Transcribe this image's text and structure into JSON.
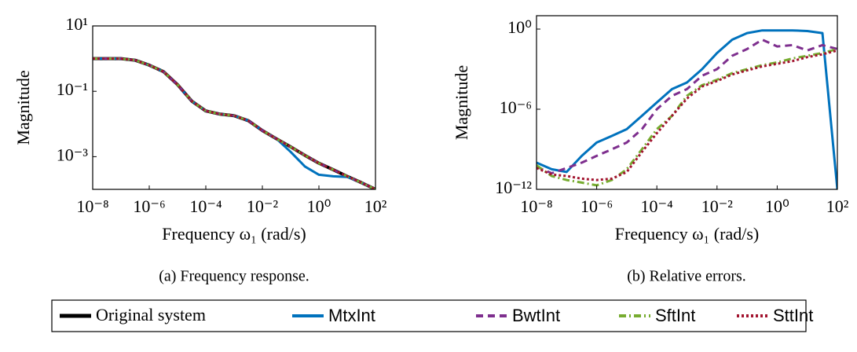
{
  "chart_data": [
    {
      "type": "line",
      "ylabel": "Magnitude",
      "xlabel": "Frequency ω₁ (rad/s)",
      "caption": "(a) Frequency response.",
      "log_x": true,
      "log_y": true,
      "xlim": [
        1e-08,
        100
      ],
      "ylim": [
        0.0001,
        10
      ],
      "xticks": [
        {
          "value": 1e-08,
          "label": "10⁻⁸"
        },
        {
          "value": 1e-06,
          "label": "10⁻⁶"
        },
        {
          "value": 0.0001,
          "label": "10⁻⁴"
        },
        {
          "value": 0.01,
          "label": "10⁻²"
        },
        {
          "value": 1,
          "label": "10⁰"
        },
        {
          "value": 100,
          "label": "10²"
        }
      ],
      "yticks": [
        {
          "value": 10,
          "label": "10¹"
        },
        {
          "value": 0.1,
          "label": "10⁻¹"
        },
        {
          "value": 0.001,
          "label": "10⁻³"
        }
      ],
      "x": [
        1e-08,
        3.2e-08,
        1e-07,
        3.2e-07,
        1e-06,
        3.2e-06,
        1e-05,
        3.2e-05,
        0.0001,
        0.00032,
        0.001,
        0.0032,
        0.01,
        0.032,
        0.1,
        0.32,
        1,
        3.2,
        10,
        32,
        100
      ],
      "series": [
        {
          "name": "Original system",
          "color": "#000000",
          "style": "solid",
          "values": [
            1,
            1,
            1,
            0.89,
            0.63,
            0.4,
            0.16,
            0.05,
            0.025,
            0.02,
            0.018,
            0.0126,
            0.0063,
            0.0035,
            0.002,
            0.0011,
            0.00063,
            0.0004,
            0.00025,
            0.00016,
            0.0001
          ]
        },
        {
          "name": "MtxInt",
          "color": "#0072bd",
          "style": "solid",
          "values": [
            1,
            1,
            1,
            0.89,
            0.63,
            0.4,
            0.16,
            0.05,
            0.025,
            0.02,
            0.018,
            0.0126,
            0.0063,
            0.0035,
            0.0014,
            0.0005,
            0.00028,
            0.00025,
            0.00024,
            0.00016,
            0.0001
          ]
        },
        {
          "name": "BwtInt",
          "color": "#7e2f8e",
          "style": "dashed",
          "values": [
            1,
            1,
            1,
            0.89,
            0.63,
            0.4,
            0.16,
            0.05,
            0.025,
            0.02,
            0.018,
            0.0126,
            0.0063,
            0.0035,
            0.002,
            0.0011,
            0.00063,
            0.0004,
            0.00025,
            0.00016,
            0.0001
          ]
        },
        {
          "name": "SftInt",
          "color": "#77ac30",
          "style": "dashdot",
          "values": [
            1,
            1,
            1,
            0.89,
            0.63,
            0.4,
            0.16,
            0.05,
            0.025,
            0.02,
            0.018,
            0.0126,
            0.0063,
            0.0035,
            0.002,
            0.0011,
            0.00063,
            0.0004,
            0.00025,
            0.00016,
            0.0001
          ]
        },
        {
          "name": "SttInt",
          "color": "#a2142f",
          "style": "dotted",
          "values": [
            1,
            1,
            1,
            0.89,
            0.63,
            0.4,
            0.16,
            0.05,
            0.025,
            0.02,
            0.018,
            0.0126,
            0.0063,
            0.0035,
            0.002,
            0.0011,
            0.00063,
            0.0004,
            0.00025,
            0.00016,
            0.0001
          ]
        }
      ]
    },
    {
      "type": "line",
      "ylabel": "Magnitude",
      "xlabel": "Frequency ω₁ (rad/s)",
      "caption": "(b) Relative errors.",
      "log_x": true,
      "log_y": true,
      "xlim": [
        1e-08,
        100
      ],
      "ylim": [
        1e-12,
        10
      ],
      "xticks": [
        {
          "value": 1e-08,
          "label": "10⁻⁸"
        },
        {
          "value": 1e-06,
          "label": "10⁻⁶"
        },
        {
          "value": 0.0001,
          "label": "10⁻⁴"
        },
        {
          "value": 0.01,
          "label": "10⁻²"
        },
        {
          "value": 1,
          "label": "10⁰"
        },
        {
          "value": 100,
          "label": "10²"
        }
      ],
      "yticks": [
        {
          "value": 1,
          "label": "10⁰"
        },
        {
          "value": 1e-06,
          "label": "10⁻⁶"
        },
        {
          "value": 1e-12,
          "label": "10⁻¹²"
        }
      ],
      "x": [
        1e-08,
        3.2e-08,
        1e-07,
        3.2e-07,
        1e-06,
        3.2e-06,
        1e-05,
        3.2e-05,
        0.0001,
        0.00032,
        0.001,
        0.0032,
        0.01,
        0.032,
        0.1,
        0.32,
        1,
        3.2,
        10,
        32,
        100
      ],
      "series": [
        {
          "name": "MtxInt",
          "color": "#0072bd",
          "style": "solid",
          "values": [
            1e-10,
            3.2e-11,
            2e-11,
            3.2e-10,
            3.2e-09,
            1e-08,
            3.2e-08,
            3.2e-07,
            3.2e-06,
            3.2e-05,
            0.0001,
            0.001,
            0.016,
            0.16,
            0.5,
            0.79,
            0.79,
            0.79,
            0.71,
            0.5,
            1e-12
          ]
        },
        {
          "name": "BwtInt",
          "color": "#7e2f8e",
          "style": "dashed",
          "values": [
            5e-11,
            1.6e-11,
            4e-11,
            1e-10,
            3.2e-10,
            1e-09,
            3.2e-09,
            3.2e-08,
            1e-06,
            1e-05,
            3.2e-05,
            0.00032,
            0.001,
            0.01,
            0.032,
            0.16,
            0.05,
            0.063,
            0.025,
            0.063,
            0.032
          ]
        },
        {
          "name": "SftInt",
          "color": "#77ac30",
          "style": "dashdot",
          "values": [
            6.3e-11,
            1e-11,
            5e-12,
            3.2e-12,
            2e-12,
            5e-12,
            3.2e-11,
            1e-09,
            3.2e-08,
            3.2e-07,
            1e-05,
            6.3e-05,
            0.00016,
            0.0005,
            0.001,
            0.002,
            0.0032,
            0.0063,
            0.01,
            0.016,
            0.032
          ]
        },
        {
          "name": "SttInt",
          "color": "#a2142f",
          "style": "dotted",
          "values": [
            4e-11,
            1.3e-11,
            1e-11,
            6.3e-12,
            5e-12,
            6.3e-12,
            2e-11,
            6.3e-10,
            1.6e-08,
            3.2e-07,
            6.3e-06,
            5e-05,
            0.00013,
            0.0004,
            0.0008,
            0.0016,
            0.0025,
            0.004,
            0.0079,
            0.013,
            0.025
          ]
        }
      ]
    }
  ]
}
